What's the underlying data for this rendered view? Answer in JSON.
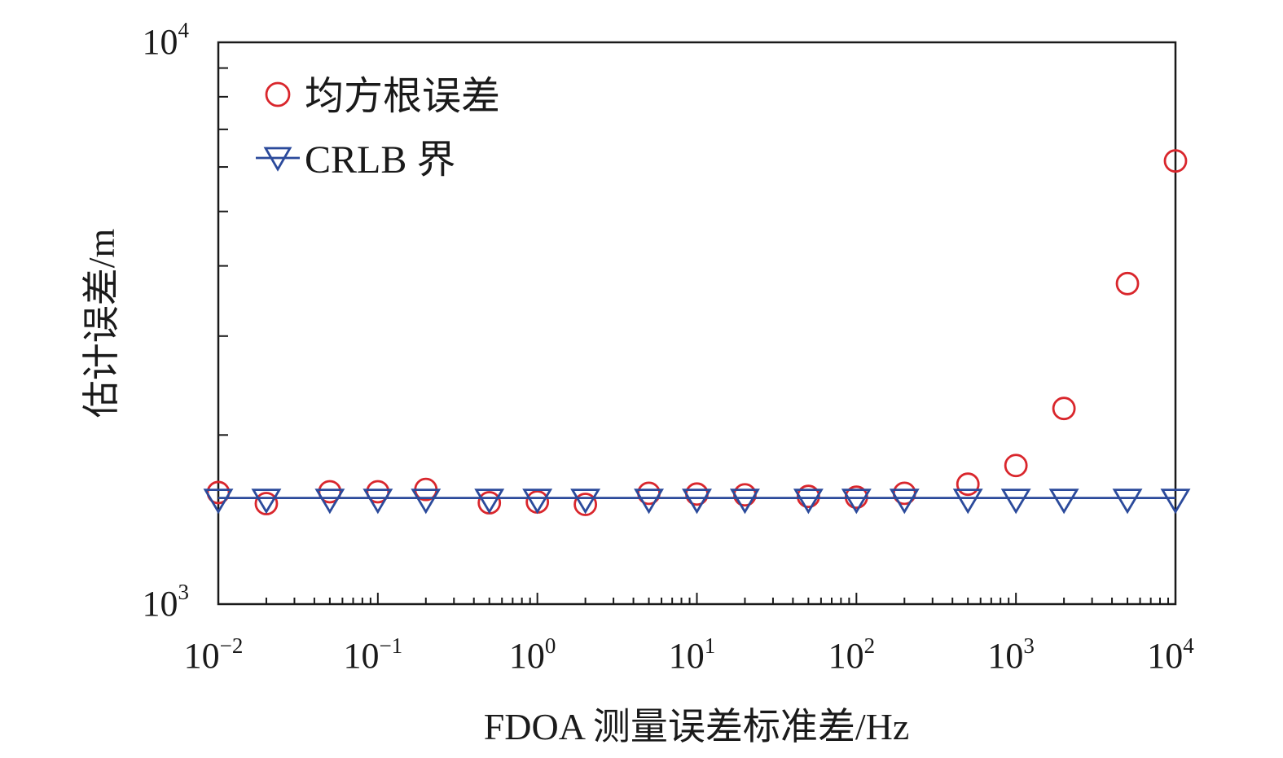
{
  "chart_data": {
    "type": "scatter",
    "xlabel": "FDOA 测量误差标准差/Hz",
    "ylabel": "估计误差/m",
    "x_scale": "log",
    "y_scale": "log",
    "xlim": [
      0.01,
      10000
    ],
    "ylim": [
      1000,
      10000
    ],
    "grid": false,
    "legend_position": "top-left",
    "x_tick_labels": [
      {
        "value": 0.01,
        "base": "10",
        "exp": "−2"
      },
      {
        "value": 0.1,
        "base": "10",
        "exp": "−1"
      },
      {
        "value": 1,
        "base": "10",
        "exp": "0"
      },
      {
        "value": 10,
        "base": "10",
        "exp": "1"
      },
      {
        "value": 100,
        "base": "10",
        "exp": "2"
      },
      {
        "value": 1000,
        "base": "10",
        "exp": "3"
      },
      {
        "value": 10000,
        "base": "10",
        "exp": "4"
      }
    ],
    "y_tick_labels": [
      {
        "value": 1000,
        "base": "10",
        "exp": "3"
      },
      {
        "value": 10000,
        "base": "10",
        "exp": "4"
      }
    ],
    "x": [
      0.01,
      0.02,
      0.05,
      0.1,
      0.2,
      0.5,
      1,
      2,
      5,
      10,
      20,
      50,
      100,
      200,
      500,
      1000,
      2000,
      5000,
      10000
    ],
    "series": [
      {
        "name": "均方根误差",
        "marker": "circle",
        "color": "#d9262c",
        "values": [
          1580,
          1510,
          1585,
          1585,
          1600,
          1515,
          1520,
          1505,
          1575,
          1570,
          1565,
          1555,
          1550,
          1575,
          1635,
          1765,
          2230,
          3720,
          6150
        ]
      },
      {
        "name": "CRLB 界",
        "marker": "triangle-down",
        "line": true,
        "color": "#2b4a9b",
        "values": [
          1545,
          1545,
          1545,
          1545,
          1545,
          1545,
          1545,
          1545,
          1545,
          1545,
          1545,
          1545,
          1545,
          1545,
          1545,
          1545,
          1545,
          1545,
          1545
        ]
      }
    ]
  }
}
